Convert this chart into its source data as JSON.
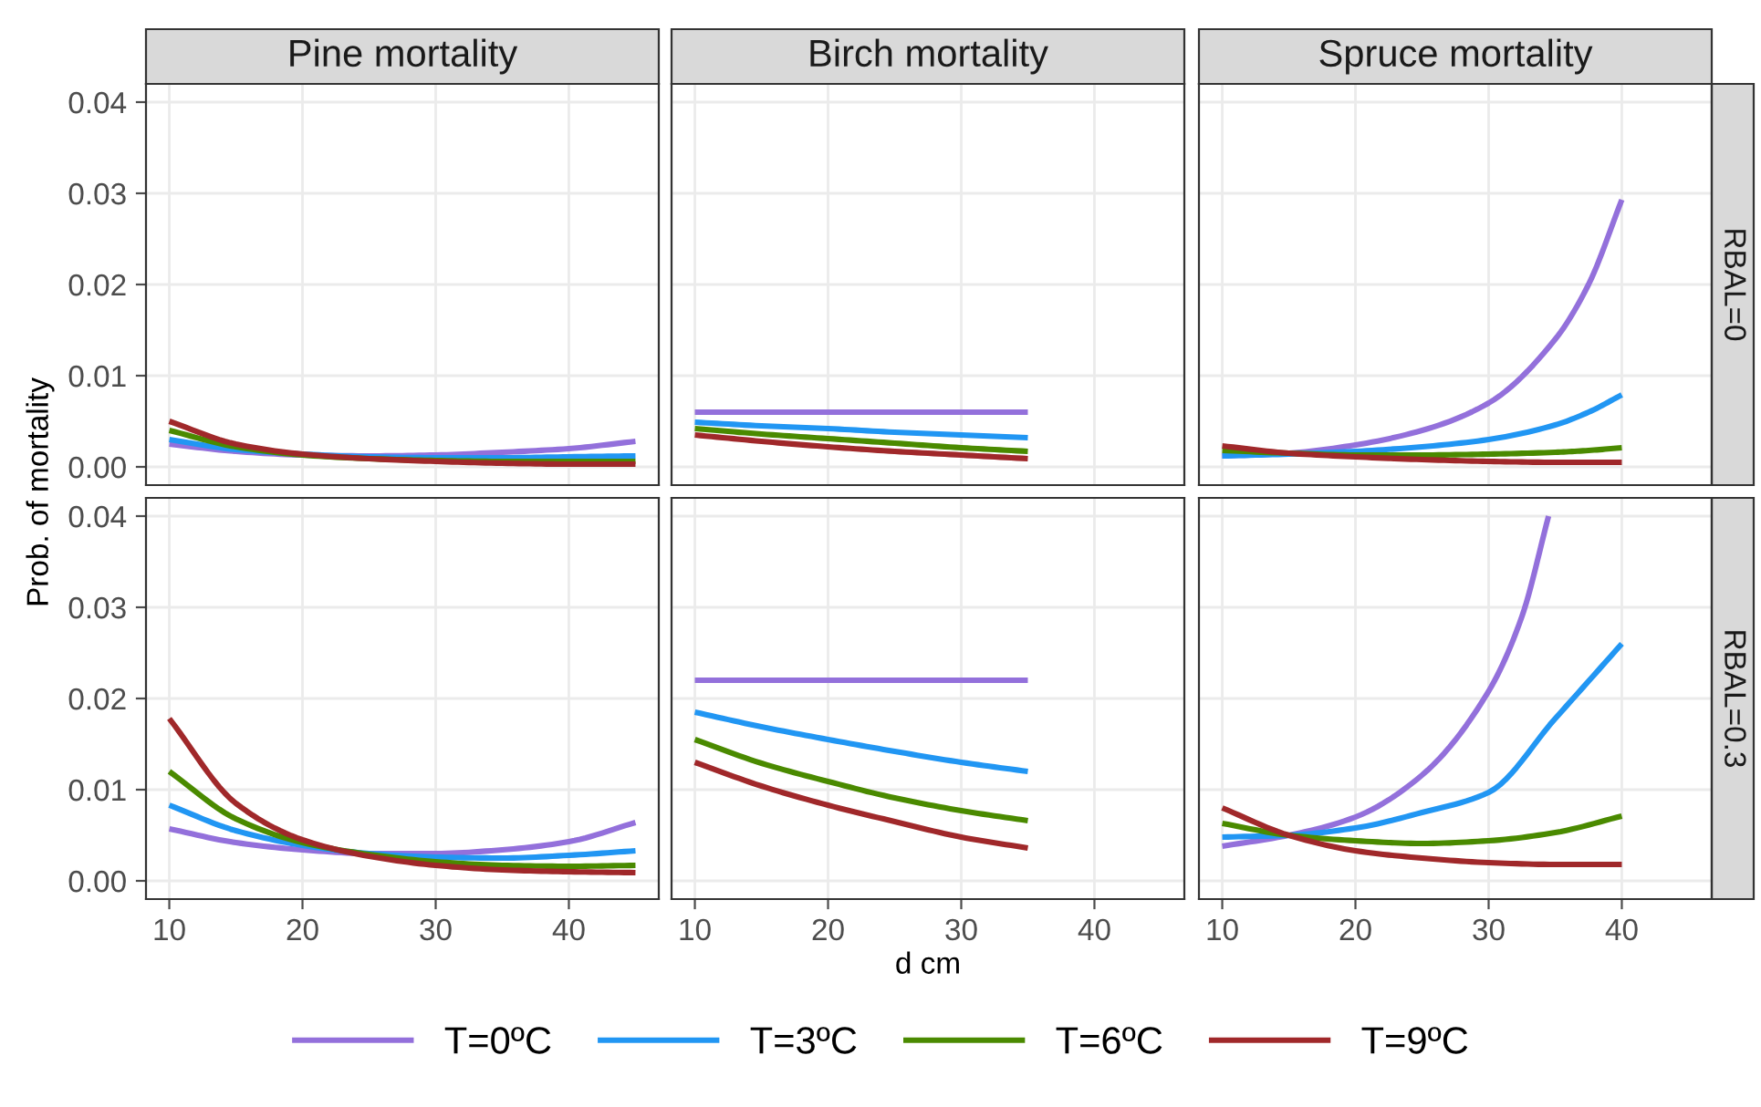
{
  "chart_data": [
    {
      "type": "line",
      "title": "Pine mortality",
      "ylabel": "Prob. of mortality",
      "legend": "bottom",
      "tick_labels": "y",
      "grid": true,
      "line_style": "solid",
      "marker": "none",
      "x": [
        10,
        15,
        20,
        25,
        30,
        35,
        40,
        45
      ],
      "xlim": [
        8.25,
        46.75
      ],
      "xticks": [
        10,
        20,
        30,
        40
      ],
      "ylim": [
        -0.002,
        0.042
      ],
      "yticks": [
        {
          "value": 0,
          "label": "0.00"
        },
        {
          "value": 0.01,
          "label": "0.01"
        },
        {
          "value": 0.02,
          "label": "0.02"
        },
        {
          "value": 0.03,
          "label": "0.03"
        },
        {
          "value": 0.04,
          "label": "0.04"
        }
      ],
      "series": [
        {
          "name": "T=0ºC",
          "color": "#9370db",
          "values": [
            0.0025,
            0.0017,
            0.0013,
            0.0012,
            0.0013,
            0.0016,
            0.002,
            0.0028
          ]
        },
        {
          "name": "T=3ºC",
          "color": "#2196f3",
          "values": [
            0.003,
            0.0019,
            0.0014,
            0.0011,
            0.001,
            0.001,
            0.0011,
            0.0012
          ]
        },
        {
          "name": "T=6ºC",
          "color": "#4a8a00",
          "values": [
            0.004,
            0.0022,
            0.0013,
            0.0009,
            0.0007,
            0.0006,
            0.0006,
            0.0006
          ]
        },
        {
          "name": "T=9ºC",
          "color": "#a0282a",
          "values": [
            0.005,
            0.0025,
            0.0014,
            0.0009,
            0.0006,
            0.0004,
            0.0003,
            0.0003
          ]
        }
      ]
    },
    {
      "type": "line",
      "title": "Birch mortality",
      "tick_labels": false,
      "grid": true,
      "line_style": "solid",
      "marker": "none",
      "x": [
        10,
        15,
        20,
        25,
        30,
        35
      ],
      "xlim": [
        8.25,
        46.75
      ],
      "xticks": [
        10,
        20,
        30,
        40
      ],
      "ylim": [
        -0.002,
        0.042
      ],
      "yticks": [
        0,
        0.01,
        0.02,
        0.03,
        0.04
      ],
      "series": [
        {
          "color": "#9370db",
          "values": [
            0.006,
            0.006,
            0.006,
            0.006,
            0.006,
            0.006
          ]
        },
        {
          "color": "#2196f3",
          "values": [
            0.0049,
            0.0045,
            0.0042,
            0.0038,
            0.0035,
            0.0032
          ]
        },
        {
          "color": "#4a8a00",
          "values": [
            0.0042,
            0.0036,
            0.0031,
            0.0026,
            0.0021,
            0.0017
          ]
        },
        {
          "color": "#a0282a",
          "values": [
            0.0035,
            0.0028,
            0.0022,
            0.0017,
            0.0013,
            0.0009
          ]
        }
      ]
    },
    {
      "type": "line",
      "title": "Spruce mortality",
      "annotations": [
        "RBAL=0"
      ],
      "tick_labels": false,
      "grid": true,
      "line_style": "solid",
      "marker": "none",
      "x": [
        10,
        15,
        20,
        25,
        30,
        35,
        37.5,
        40
      ],
      "xlim": [
        8.25,
        46.75
      ],
      "xticks": [
        10,
        20,
        30,
        40
      ],
      "ylim": [
        -0.002,
        0.042
      ],
      "yticks": [
        0,
        0.01,
        0.02,
        0.03,
        0.04
      ],
      "series": [
        {
          "color": "#9370db",
          "values": [
            0.0012,
            0.0015,
            0.0024,
            0.004,
            0.007,
            0.014,
            0.02,
            0.0293
          ]
        },
        {
          "color": "#2196f3",
          "values": [
            0.0012,
            0.0014,
            0.0017,
            0.0022,
            0.003,
            0.0046,
            0.006,
            0.0079
          ]
        },
        {
          "color": "#4a8a00",
          "values": [
            0.0018,
            0.0015,
            0.0013,
            0.0013,
            0.0014,
            0.0016,
            0.0018,
            0.0021
          ]
        },
        {
          "color": "#a0282a",
          "values": [
            0.0023,
            0.0015,
            0.0011,
            0.0008,
            0.0006,
            0.0005,
            0.0005,
            0.0005
          ]
        }
      ]
    },
    {
      "type": "line",
      "grid": true,
      "line_style": "solid",
      "marker": "none",
      "x": [
        10,
        15,
        20,
        25,
        30,
        35,
        40,
        45
      ],
      "xlim": [
        8.25,
        46.75
      ],
      "xticks": [
        10,
        20,
        30,
        40
      ],
      "ylim": [
        -0.002,
        0.042
      ],
      "yticks": [
        {
          "value": 0,
          "label": "0.00"
        },
        {
          "value": 0.01,
          "label": "0.01"
        },
        {
          "value": 0.02,
          "label": "0.02"
        },
        {
          "value": 0.03,
          "label": "0.03"
        },
        {
          "value": 0.04,
          "label": "0.04"
        }
      ],
      "series": [
        {
          "color": "#9370db",
          "values": [
            0.0057,
            0.0042,
            0.0034,
            0.003,
            0.003,
            0.0034,
            0.0043,
            0.0064
          ]
        },
        {
          "color": "#2196f3",
          "values": [
            0.0083,
            0.0055,
            0.0039,
            0.003,
            0.0026,
            0.0025,
            0.0028,
            0.0033
          ]
        },
        {
          "color": "#4a8a00",
          "values": [
            0.012,
            0.0068,
            0.0042,
            0.0029,
            0.0021,
            0.0017,
            0.0016,
            0.0017
          ]
        },
        {
          "color": "#a0282a",
          "values": [
            0.0178,
            0.0085,
            0.0045,
            0.0027,
            0.0017,
            0.0012,
            0.001,
            0.0009
          ]
        }
      ]
    },
    {
      "type": "line",
      "xlabel": "d cm",
      "tick_labels": "x",
      "grid": true,
      "line_style": "solid",
      "marker": "none",
      "x": [
        10,
        15,
        20,
        25,
        30,
        35
      ],
      "xlim": [
        8.25,
        46.75
      ],
      "xticks": [
        10,
        20,
        30,
        40
      ],
      "ylim": [
        -0.002,
        0.042
      ],
      "yticks": [
        0,
        0.01,
        0.02,
        0.03,
        0.04
      ],
      "series": [
        {
          "color": "#9370db",
          "values": [
            0.022,
            0.022,
            0.022,
            0.022,
            0.022,
            0.022
          ]
        },
        {
          "color": "#2196f3",
          "values": [
            0.0185,
            0.0169,
            0.0155,
            0.0142,
            0.013,
            0.012
          ]
        },
        {
          "color": "#4a8a00",
          "values": [
            0.0155,
            0.0129,
            0.0109,
            0.0091,
            0.0077,
            0.0066
          ]
        },
        {
          "color": "#a0282a",
          "values": [
            0.013,
            0.0104,
            0.0083,
            0.0065,
            0.0048,
            0.0036
          ]
        }
      ]
    },
    {
      "type": "line",
      "annotations": [
        "RBAL=0.3"
      ],
      "tick_labels": "x",
      "grid": true,
      "line_style": "solid",
      "marker": "none",
      "xlim": [
        8.25,
        46.75
      ],
      "xticks": [
        10,
        20,
        30,
        40
      ],
      "ylim": [
        -0.002,
        0.042
      ],
      "yticks": [
        0,
        0.01,
        0.02,
        0.03,
        0.04
      ],
      "series": [
        {
          "color": "#9370db",
          "x": [
            10,
            15,
            20,
            25,
            30,
            32.5,
            34.5
          ],
          "values": [
            0.0038,
            0.005,
            0.007,
            0.0116,
            0.0208,
            0.029,
            0.04
          ]
        },
        {
          "color": "#2196f3",
          "x": [
            10,
            15,
            20,
            25,
            30,
            35,
            40
          ],
          "values": [
            0.0048,
            0.005,
            0.0058,
            0.0075,
            0.0097,
            0.0178,
            0.026
          ]
        },
        {
          "color": "#4a8a00",
          "x": [
            10,
            15,
            20,
            25,
            30,
            35,
            40
          ],
          "values": [
            0.0063,
            0.005,
            0.0044,
            0.0041,
            0.0044,
            0.0053,
            0.0071
          ]
        },
        {
          "color": "#a0282a",
          "x": [
            10,
            15,
            20,
            25,
            30,
            35,
            40
          ],
          "values": [
            0.008,
            0.005,
            0.0033,
            0.0025,
            0.002,
            0.0018,
            0.0018
          ]
        }
      ]
    }
  ]
}
